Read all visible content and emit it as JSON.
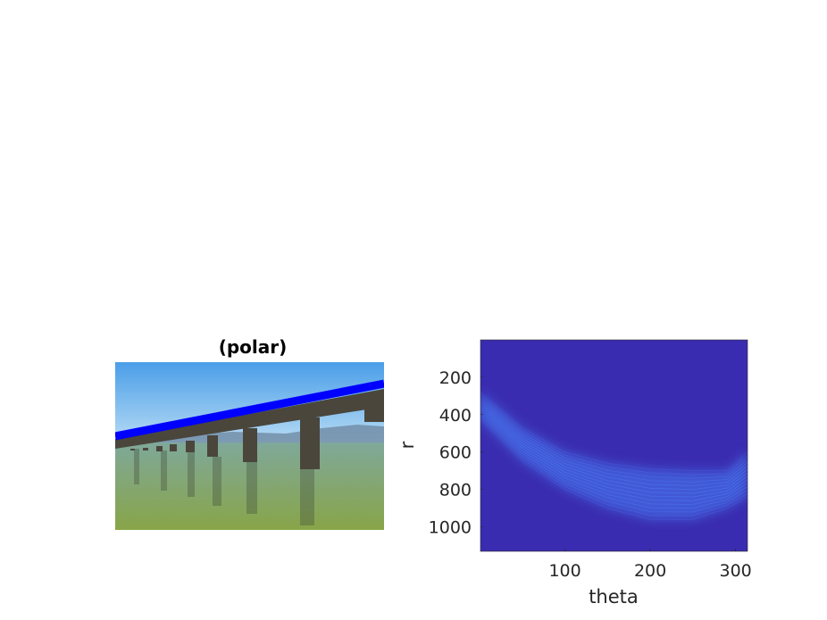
{
  "chart_data": [
    {
      "type": "image",
      "title": "(polar)",
      "overlay_line_color": "#0000ff",
      "colors": {
        "sky_top": "#4a9ee8",
        "sky_bottom": "#b6dbf4",
        "water_top": "#7fa89a",
        "water_bottom": "#88a548",
        "bridge": "#4a463c"
      }
    },
    {
      "type": "heatmap",
      "title": "",
      "xlabel": "theta",
      "ylabel": "r",
      "xlim": [
        1,
        314
      ],
      "ylim": [
        1,
        1130
      ],
      "y_reversed": true,
      "xticks": [
        100,
        200,
        300
      ],
      "yticks": [
        200,
        400,
        600,
        800,
        1000
      ],
      "background_color": "#3a2cb0",
      "highlight_color": "#4a7ef5",
      "band": {
        "theta": [
          1,
          50,
          100,
          150,
          200,
          250,
          290,
          314
        ],
        "r_upper": [
          280,
          470,
          600,
          660,
          690,
          700,
          700,
          600
        ],
        "r_lower": [
          430,
          650,
          800,
          900,
          960,
          960,
          900,
          840
        ]
      }
    }
  ]
}
